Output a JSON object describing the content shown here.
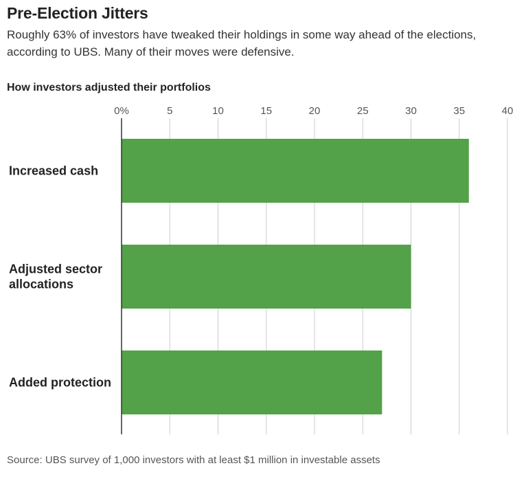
{
  "title": "Pre-Election Jitters",
  "subtitle": "Roughly 63% of investors have tweaked their holdings in some way ahead of the elections, according to UBS. Many of their moves were defensive.",
  "chart_label": "How investors adjusted their portfolios",
  "source": "Source: UBS survey of 1,000 investors with at least $1 million in investable assets",
  "colors": {
    "bar": "#53a148",
    "grid": "#cccccc",
    "axis": "#333333"
  },
  "chart_data": {
    "type": "bar",
    "orientation": "horizontal",
    "title": "How investors adjusted their portfolios",
    "categories": [
      "Increased cash",
      "Adjusted sector allocations",
      "Added protection"
    ],
    "category_lines": [
      [
        "Increased cash"
      ],
      [
        "Adjusted sector",
        "allocations"
      ],
      [
        "Added protection"
      ]
    ],
    "values": [
      36,
      30,
      27
    ],
    "xlim": [
      0,
      40
    ],
    "xticks": [
      0,
      5,
      10,
      15,
      20,
      25,
      30,
      35,
      40
    ],
    "xtick_labels": [
      "0%",
      "5",
      "10",
      "15",
      "20",
      "25",
      "30",
      "35",
      "40"
    ],
    "xaxis_position": "top",
    "grid": true
  }
}
